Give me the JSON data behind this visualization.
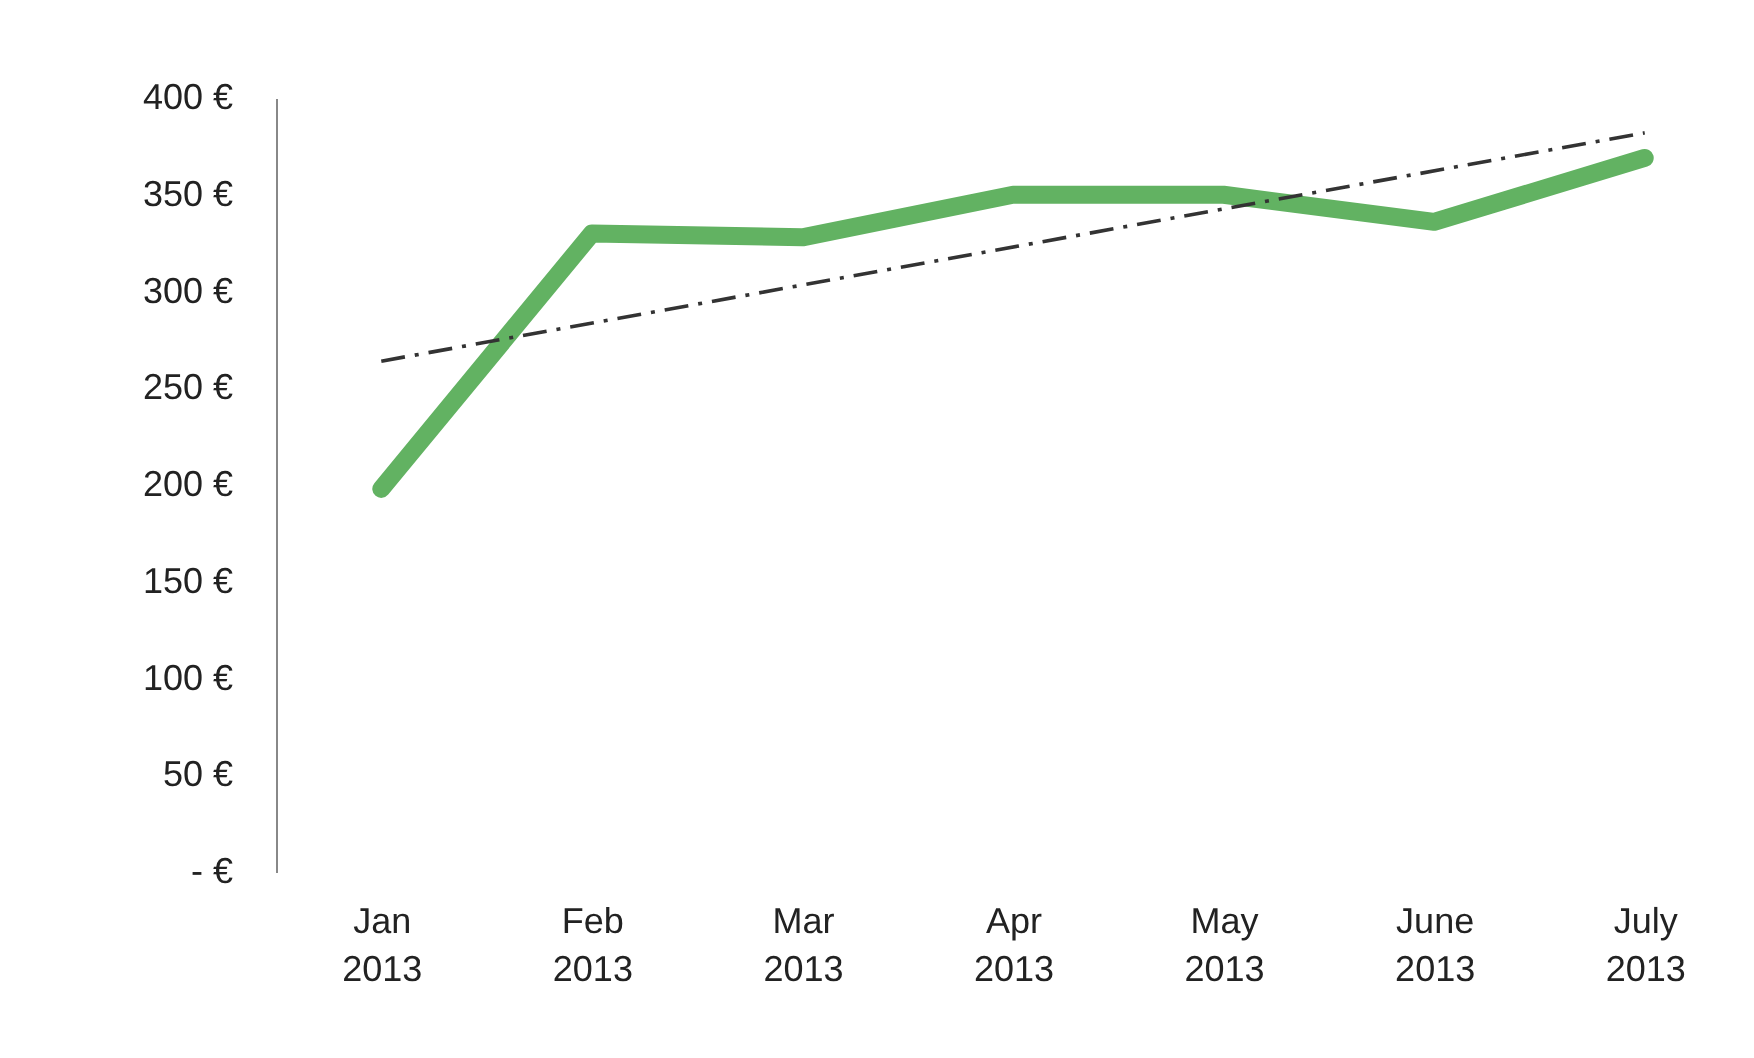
{
  "chart_data": {
    "type": "line",
    "categories": [
      "Jan 2013",
      "Feb 2013",
      "Mar 2013",
      "Apr 2013",
      "May 2013",
      "June 2013",
      "July 2013"
    ],
    "series": [
      {
        "color": "#62b262",
        "values": [
          198,
          330,
          328,
          350,
          350,
          336,
          369
        ]
      },
      {
        "type": "line",
        "color": "#333333",
        "line_style": "dashed",
        "x": [
          "Jan 2013",
          "July 2013"
        ],
        "values": [
          264,
          382
        ]
      }
    ],
    "ylim": [
      0,
      400
    ],
    "yticks": [
      {
        "value": 0,
        "label": "- €"
      },
      {
        "value": 50,
        "label": "50 €"
      },
      {
        "value": 100,
        "label": "100 €"
      },
      {
        "value": 150,
        "label": "150 €"
      },
      {
        "value": 200,
        "label": "200 €"
      },
      {
        "value": 250,
        "label": "250 €"
      },
      {
        "value": 300,
        "label": "300 €"
      },
      {
        "value": 350,
        "label": "350 €"
      },
      {
        "value": 400,
        "label": "400 €"
      }
    ],
    "grid": false,
    "marker": "none",
    "line_style": "solid"
  }
}
